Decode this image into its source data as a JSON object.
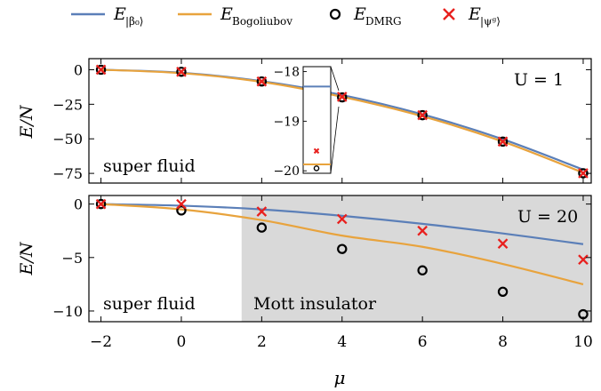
{
  "legend": [
    {
      "symbol": "line",
      "color": "#5b7fb8",
      "main": "E",
      "sub": "|β₀⟩"
    },
    {
      "symbol": "line",
      "color": "#e8a33d",
      "main": "E",
      "sub": "Bogoliubov"
    },
    {
      "symbol": "circle",
      "color": "#000000",
      "main": "E",
      "sub": "DMRG"
    },
    {
      "symbol": "cross",
      "color": "#e8201e",
      "main": "E",
      "sub": "|ψᵍ⟩"
    }
  ],
  "colors": {
    "beta0": "#5b7fb8",
    "bogoliubov": "#e8a33d",
    "dmrg": "#000000",
    "psi": "#e8201e",
    "mott_shade": "#d9d9d9"
  },
  "xlabel": "μ",
  "chart_data": [
    {
      "type": "line",
      "panel": "top",
      "annotation": "U = 1",
      "region_label": "super fluid",
      "ylabel": "E/N",
      "xlim": [
        -2.3,
        10.2
      ],
      "ylim": [
        -82,
        8
      ],
      "x_ticks": [
        -2,
        0,
        2,
        4,
        6,
        8,
        10
      ],
      "y_ticks": [
        0,
        -25,
        -50,
        -75
      ],
      "series": [
        {
          "key": "beta0",
          "x": [
            -2,
            0,
            2,
            4,
            6,
            8,
            10
          ],
          "y": [
            0,
            -2.2,
            -8.3,
            -18.3,
            -32.3,
            -50.3,
            -72.3
          ]
        },
        {
          "key": "bogoliubov",
          "x": [
            -2,
            0,
            2,
            4,
            6,
            8,
            10
          ],
          "y": [
            0,
            -2.5,
            -8.8,
            -19.6,
            -33.7,
            -52.0,
            -74.5
          ]
        },
        {
          "key": "dmrg",
          "x": [
            -2,
            0,
            2,
            4,
            6,
            8,
            10
          ],
          "y": [
            0,
            -1.5,
            -8.5,
            -20.0,
            -32.9,
            -52.0,
            -74.9
          ]
        },
        {
          "key": "psi",
          "x": [
            -2,
            0,
            2,
            4,
            6,
            8,
            10
          ],
          "y": [
            0,
            -1.5,
            -8.5,
            -19.6,
            -32.9,
            -52.0,
            -74.9
          ]
        }
      ],
      "inset": {
        "ylim": [
          -20.05,
          -17.9
        ],
        "y_ticks": [
          -18,
          -19,
          -20
        ],
        "beta0": -18.3,
        "bogoliubov": -19.87,
        "psi": -19.6,
        "dmrg": -19.95
      }
    },
    {
      "type": "line",
      "panel": "bottom",
      "annotation": "U = 20",
      "region_labels": [
        "super fluid",
        "Mott insulator"
      ],
      "shaded_region_from": 1.5,
      "ylabel": "E/N",
      "xlim": [
        -2.3,
        10.2
      ],
      "ylim": [
        -11,
        0.8
      ],
      "x_ticks": [
        -2,
        0,
        2,
        4,
        6,
        8,
        10
      ],
      "x_tick_labels": [
        "−2",
        "0",
        "2",
        "4",
        "6",
        "8",
        "10"
      ],
      "y_ticks": [
        0,
        -5,
        -10
      ],
      "y_tick_labels": [
        "0",
        "−5",
        "−10"
      ],
      "series": [
        {
          "key": "beta0",
          "x": [
            -2,
            0,
            2,
            4,
            6,
            8,
            10
          ],
          "y": [
            0,
            -0.15,
            -0.5,
            -1.1,
            -1.85,
            -2.75,
            -3.75
          ]
        },
        {
          "key": "bogoliubov",
          "x": [
            -2,
            0,
            2,
            4,
            6,
            8,
            10
          ],
          "y": [
            0,
            -0.5,
            -1.5,
            -2.95,
            -4.0,
            -5.6,
            -7.5
          ]
        },
        {
          "key": "dmrg",
          "x": [
            -2,
            0,
            2,
            4,
            6,
            8,
            10
          ],
          "y": [
            0,
            -0.6,
            -2.2,
            -4.2,
            -6.2,
            -8.2,
            -10.3
          ]
        },
        {
          "key": "psi",
          "x": [
            -2,
            0,
            2,
            4,
            6,
            8,
            10
          ],
          "y": [
            0,
            0,
            -0.7,
            -1.4,
            -2.5,
            -3.7,
            -5.2
          ]
        }
      ]
    }
  ],
  "top_y_tick_labels": [
    "0",
    "−25",
    "−50",
    "−75"
  ],
  "inset_tick_labels": [
    "−18",
    "−19",
    "−20"
  ]
}
